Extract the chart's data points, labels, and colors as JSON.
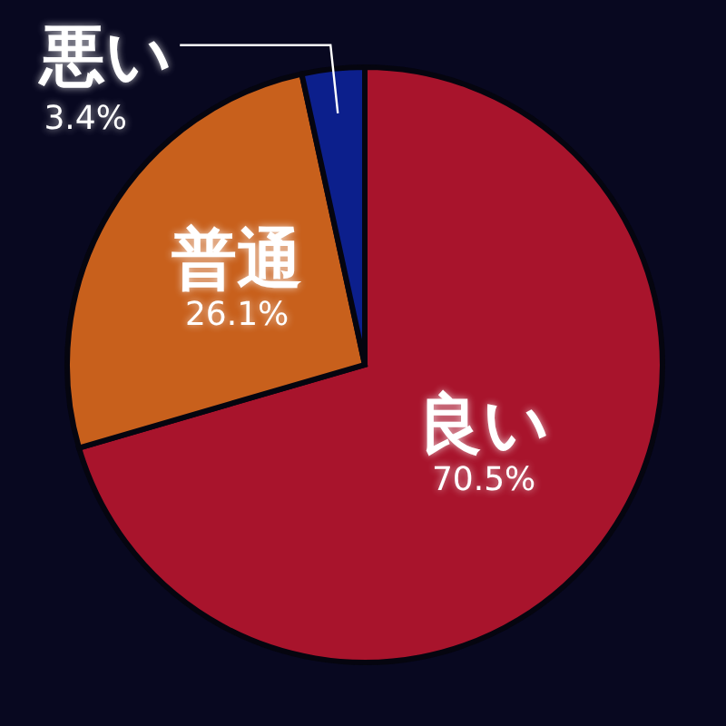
{
  "chart_data": {
    "type": "pie",
    "categories": [
      "良い",
      "普通",
      "悪い"
    ],
    "values": [
      70.5,
      26.1,
      3.4
    ],
    "colors": [
      "#a8142c",
      "#c8601c",
      "#0c1f8c"
    ],
    "value_labels": [
      "70.5%",
      "26.1%",
      "3.4%"
    ]
  }
}
